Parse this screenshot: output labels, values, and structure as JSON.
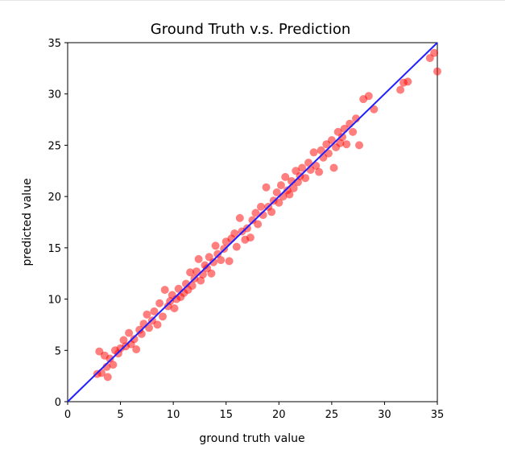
{
  "chart_data": {
    "type": "scatter",
    "title": "Ground Truth v.s. Prediction",
    "xlabel": "ground truth value",
    "ylabel": "predicted value",
    "xlim": [
      0,
      35
    ],
    "ylim": [
      0,
      35
    ],
    "xticks": [
      0,
      5,
      10,
      15,
      20,
      25,
      30,
      35
    ],
    "yticks": [
      0,
      5,
      10,
      15,
      20,
      25,
      30,
      35
    ],
    "grid": false,
    "colors": {
      "points": "#ff0000",
      "reference_line": "#1f1fff"
    },
    "reference_line": {
      "from": [
        0,
        0
      ],
      "to": [
        35,
        35
      ]
    },
    "series": [
      {
        "points": [
          [
            2.8,
            2.7
          ],
          [
            3.0,
            4.9
          ],
          [
            3.2,
            2.8
          ],
          [
            3.5,
            4.5
          ],
          [
            3.7,
            3.4
          ],
          [
            3.8,
            2.4
          ],
          [
            4.0,
            4.2
          ],
          [
            4.3,
            3.6
          ],
          [
            4.5,
            5.0
          ],
          [
            4.8,
            4.7
          ],
          [
            5.0,
            5.2
          ],
          [
            5.3,
            6.0
          ],
          [
            5.5,
            5.4
          ],
          [
            5.8,
            6.7
          ],
          [
            6.0,
            5.6
          ],
          [
            6.3,
            6.1
          ],
          [
            6.5,
            5.1
          ],
          [
            6.8,
            7.0
          ],
          [
            7.0,
            6.6
          ],
          [
            7.2,
            7.6
          ],
          [
            7.5,
            8.5
          ],
          [
            7.7,
            7.2
          ],
          [
            8.0,
            7.9
          ],
          [
            8.2,
            8.8
          ],
          [
            8.5,
            7.5
          ],
          [
            8.7,
            9.6
          ],
          [
            9.0,
            8.3
          ],
          [
            9.2,
            10.9
          ],
          [
            9.5,
            9.3
          ],
          [
            9.7,
            9.8
          ],
          [
            9.9,
            10.4
          ],
          [
            10.1,
            9.1
          ],
          [
            10.3,
            10.0
          ],
          [
            10.5,
            11.0
          ],
          [
            10.7,
            10.2
          ],
          [
            11.0,
            10.6
          ],
          [
            11.2,
            11.5
          ],
          [
            11.4,
            10.9
          ],
          [
            11.6,
            12.6
          ],
          [
            11.8,
            11.3
          ],
          [
            12.0,
            12.0
          ],
          [
            12.2,
            12.7
          ],
          [
            12.4,
            13.9
          ],
          [
            12.6,
            11.8
          ],
          [
            12.8,
            12.4
          ],
          [
            13.0,
            13.3
          ],
          [
            13.2,
            13.0
          ],
          [
            13.4,
            14.1
          ],
          [
            13.6,
            12.5
          ],
          [
            13.8,
            13.6
          ],
          [
            14.0,
            15.2
          ],
          [
            14.2,
            14.4
          ],
          [
            14.5,
            13.8
          ],
          [
            14.8,
            14.9
          ],
          [
            15.0,
            15.6
          ],
          [
            15.3,
            13.7
          ],
          [
            15.5,
            15.9
          ],
          [
            15.8,
            16.4
          ],
          [
            16.0,
            15.1
          ],
          [
            16.3,
            17.9
          ],
          [
            16.5,
            16.6
          ],
          [
            16.8,
            15.8
          ],
          [
            17.0,
            16.9
          ],
          [
            17.3,
            16.0
          ],
          [
            17.5,
            17.7
          ],
          [
            17.8,
            18.4
          ],
          [
            18.0,
            17.3
          ],
          [
            18.3,
            19.0
          ],
          [
            18.5,
            18.2
          ],
          [
            18.8,
            20.9
          ],
          [
            19.0,
            19.0
          ],
          [
            19.3,
            18.5
          ],
          [
            19.5,
            19.6
          ],
          [
            19.8,
            20.4
          ],
          [
            20.0,
            19.4
          ],
          [
            20.2,
            21.1
          ],
          [
            20.4,
            20.0
          ],
          [
            20.6,
            21.9
          ],
          [
            20.8,
            20.6
          ],
          [
            21.0,
            20.2
          ],
          [
            21.2,
            21.5
          ],
          [
            21.4,
            20.8
          ],
          [
            21.6,
            22.5
          ],
          [
            21.8,
            21.4
          ],
          [
            22.0,
            22.0
          ],
          [
            22.2,
            22.8
          ],
          [
            22.5,
            21.8
          ],
          [
            22.8,
            23.3
          ],
          [
            23.0,
            22.6
          ],
          [
            23.3,
            24.3
          ],
          [
            23.5,
            23.0
          ],
          [
            23.8,
            22.4
          ],
          [
            24.0,
            24.5
          ],
          [
            24.2,
            23.8
          ],
          [
            24.5,
            25.1
          ],
          [
            24.7,
            24.2
          ],
          [
            25.0,
            25.5
          ],
          [
            25.2,
            22.8
          ],
          [
            25.4,
            24.8
          ],
          [
            25.6,
            26.3
          ],
          [
            25.8,
            25.2
          ],
          [
            26.0,
            25.8
          ],
          [
            26.2,
            26.6
          ],
          [
            26.4,
            25.1
          ],
          [
            26.7,
            27.1
          ],
          [
            27.0,
            26.3
          ],
          [
            27.3,
            27.6
          ],
          [
            27.6,
            25.0
          ],
          [
            28.0,
            29.5
          ],
          [
            28.5,
            29.8
          ],
          [
            29.0,
            28.5
          ],
          [
            31.5,
            30.4
          ],
          [
            31.8,
            31.1
          ],
          [
            32.2,
            31.2
          ],
          [
            34.3,
            33.5
          ],
          [
            34.7,
            34.0
          ],
          [
            35.0,
            32.2
          ]
        ]
      }
    ]
  }
}
